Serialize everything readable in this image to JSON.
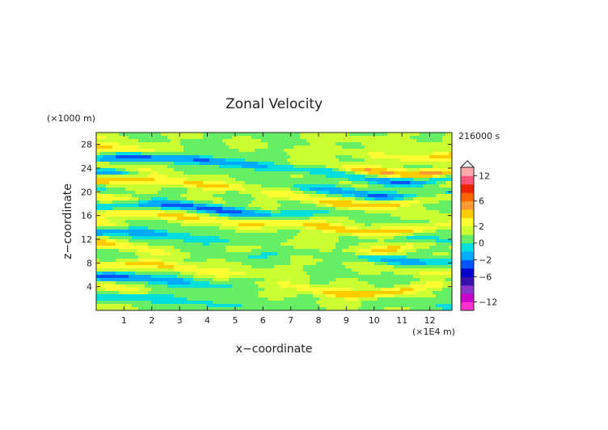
{
  "chart_data": {
    "type": "heatmap",
    "title": "Zonal Velocity",
    "xlabel": "x−coordinate",
    "ylabel": "z−coordinate",
    "x_unit_label": "(×1E4 m)",
    "y_unit_label": "(×1000 m)",
    "time_label": "216000 s",
    "xlim": [
      0,
      12.8
    ],
    "ylim": [
      0,
      30
    ],
    "x_ticks": [
      {
        "value": 1,
        "label": "1"
      },
      {
        "value": 2,
        "label": "2"
      },
      {
        "value": 3,
        "label": "3"
      },
      {
        "value": 4,
        "label": "4"
      },
      {
        "value": 5,
        "label": "5"
      },
      {
        "value": 6,
        "label": "6"
      },
      {
        "value": 7,
        "label": "7"
      },
      {
        "value": 8,
        "label": "8"
      },
      {
        "value": 9,
        "label": "9"
      },
      {
        "value": 10,
        "label": "10"
      },
      {
        "value": 11,
        "label": "11"
      },
      {
        "value": 12,
        "label": "12"
      }
    ],
    "y_ticks": [
      {
        "value": 4,
        "label": "4"
      },
      {
        "value": 8,
        "label": "8"
      },
      {
        "value": 12,
        "label": "12"
      },
      {
        "value": 16,
        "label": "16"
      },
      {
        "value": 20,
        "label": "20"
      },
      {
        "value": 24,
        "label": "24"
      },
      {
        "value": 28,
        "label": "28"
      }
    ],
    "colorbar": {
      "levels": [
        -14,
        -12,
        -10,
        -8,
        -6,
        -4,
        -2,
        -1,
        0,
        1,
        2,
        3,
        4,
        6,
        8,
        10,
        12,
        14
      ],
      "colors": [
        "#ff33cc",
        "#cc00cc",
        "#8833cc",
        "#3311aa",
        "#0000cc",
        "#0055ff",
        "#00aaff",
        "#00dddd",
        "#66ee66",
        "#ccff33",
        "#ffff33",
        "#ffcc00",
        "#ff9933",
        "#ff6600",
        "#ee2200",
        "#ff5577",
        "#ffaaaa"
      ],
      "tick_labels": [
        {
          "value": 12,
          "label": "12"
        },
        {
          "value": 6,
          "label": "6"
        },
        {
          "value": 2,
          "label": "2"
        },
        {
          "value": 0,
          "label": "0"
        },
        {
          "value": -2,
          "label": "−2"
        },
        {
          "value": -6,
          "label": "−6"
        },
        {
          "value": -12,
          "label": "−12"
        }
      ],
      "extend_max": true
    },
    "field_bands": [
      {
        "z": 1.5,
        "amp": -1.5,
        "phase": 0.5,
        "k": 0.45
      },
      {
        "z": 3.5,
        "amp": 2.5,
        "phase": 2.1,
        "k": 0.55
      },
      {
        "z": 4.8,
        "amp": -2.5,
        "phase": 1.2,
        "k": 0.35
      },
      {
        "z": 7.0,
        "amp": 2.2,
        "phase": 0.3,
        "k": 0.5
      },
      {
        "z": 9.0,
        "amp": -1.8,
        "phase": 2.8,
        "k": 0.4
      },
      {
        "z": 10.5,
        "amp": 2.0,
        "phase": 1.5,
        "k": 0.6
      },
      {
        "z": 12.5,
        "amp": -2.5,
        "phase": 0.9,
        "k": 0.45
      },
      {
        "z": 14.0,
        "amp": 2.6,
        "phase": 2.4,
        "k": 0.5
      },
      {
        "z": 15.5,
        "amp": 2.0,
        "phase": 1.0,
        "k": 0.35
      },
      {
        "z": 17.0,
        "amp": -2.8,
        "phase": 0.2,
        "k": 0.4
      },
      {
        "z": 18.5,
        "amp": 2.5,
        "phase": 1.9,
        "k": 0.55
      },
      {
        "z": 20.0,
        "amp": -2.2,
        "phase": 2.6,
        "k": 0.45
      },
      {
        "z": 21.3,
        "amp": 3.0,
        "phase": 0.7,
        "k": 0.4
      },
      {
        "z": 22.5,
        "amp": -2.5,
        "phase": 1.6,
        "k": 0.5
      },
      {
        "z": 23.8,
        "amp": 2.8,
        "phase": 2.2,
        "k": 0.45
      },
      {
        "z": 25.0,
        "amp": -3.0,
        "phase": 0.4,
        "k": 0.35
      },
      {
        "z": 26.5,
        "amp": 1.8,
        "phase": 1.3,
        "k": 0.5
      },
      {
        "z": 28.5,
        "amp": 0.8,
        "phase": 2.0,
        "k": 0.4
      }
    ],
    "grid": false,
    "legend": "colorbar-right"
  }
}
